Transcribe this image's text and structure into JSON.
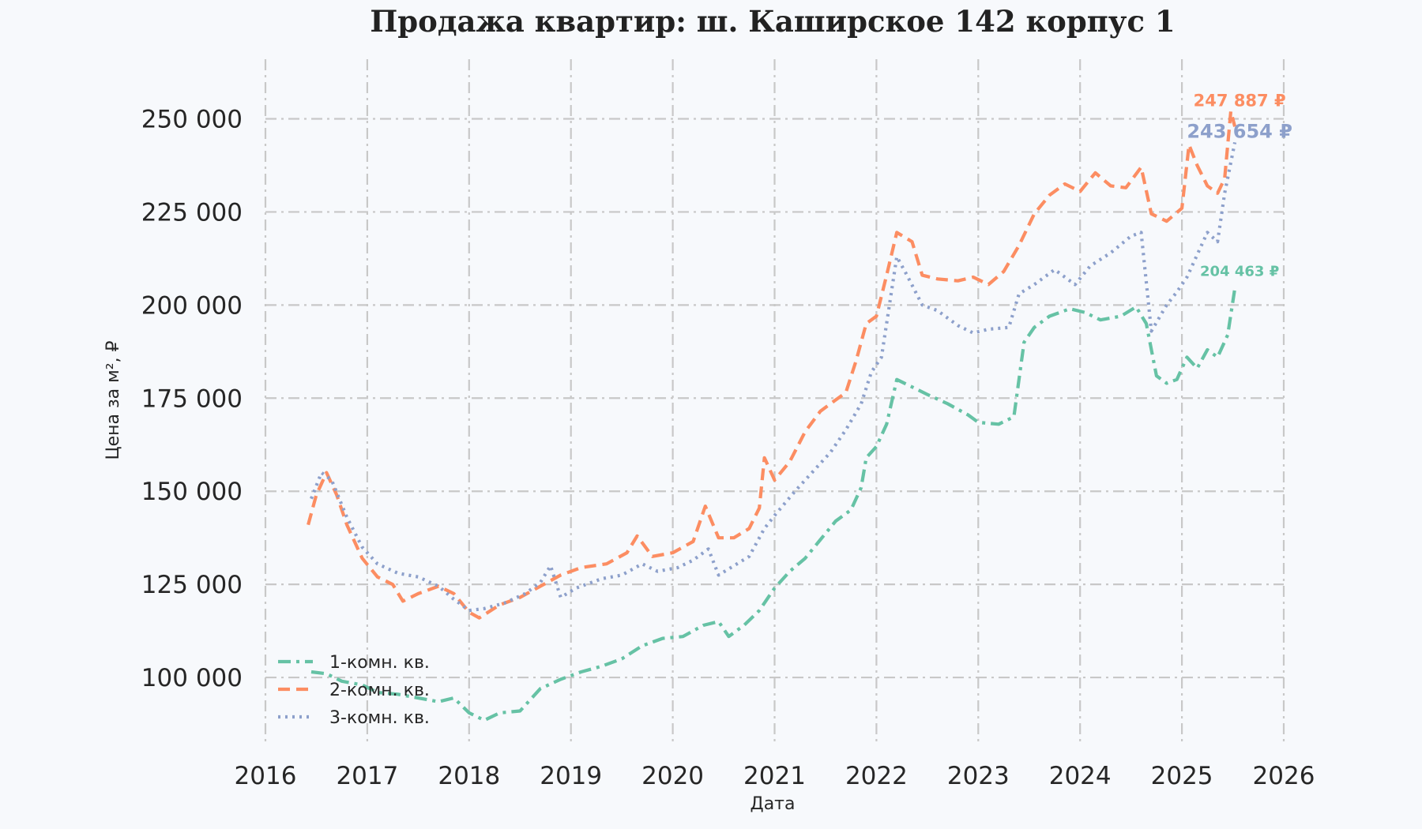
{
  "chart_data": {
    "type": "line",
    "title": "Продажа квартир: ш. Каширское 142 корпус 1",
    "xlabel": "Дата",
    "ylabel": "Цена за м², ₽",
    "xlim": [
      2016.0,
      2026.0
    ],
    "ylim": [
      82000,
      266000
    ],
    "x_ticks": [
      2016,
      2017,
      2018,
      2019,
      2020,
      2021,
      2022,
      2023,
      2024,
      2025,
      2026
    ],
    "x_tick_labels": [
      "2016",
      "2017",
      "2018",
      "2019",
      "2020",
      "2021",
      "2022",
      "2023",
      "2024",
      "2025",
      "2026"
    ],
    "y_ticks": [
      100000,
      125000,
      150000,
      175000,
      200000,
      225000,
      250000
    ],
    "y_tick_labels": [
      "100 000",
      "125 000",
      "150 000",
      "175 000",
      "200 000",
      "225 000",
      "250 000"
    ],
    "grid": true,
    "legend_position": "bottom-left",
    "series": [
      {
        "name": "1-комн. кв.",
        "color": "#66c2a5",
        "dash": "dash-dot",
        "end_label": "204 463 ₽",
        "points": [
          [
            2016.45,
            101500
          ],
          [
            2016.6,
            101000
          ],
          [
            2016.75,
            99000
          ],
          [
            2016.95,
            98000
          ],
          [
            2017.1,
            96000
          ],
          [
            2017.3,
            95500
          ],
          [
            2017.5,
            94500
          ],
          [
            2017.7,
            93500
          ],
          [
            2017.85,
            94500
          ],
          [
            2018.0,
            90500
          ],
          [
            2018.15,
            88500
          ],
          [
            2018.3,
            90500
          ],
          [
            2018.5,
            91000
          ],
          [
            2018.7,
            97000
          ],
          [
            2018.9,
            99500
          ],
          [
            2019.1,
            101500
          ],
          [
            2019.3,
            103000
          ],
          [
            2019.5,
            105000
          ],
          [
            2019.7,
            108500
          ],
          [
            2019.9,
            110500
          ],
          [
            2020.1,
            111000
          ],
          [
            2020.3,
            114000
          ],
          [
            2020.45,
            115000
          ],
          [
            2020.55,
            111000
          ],
          [
            2020.7,
            114000
          ],
          [
            2020.85,
            118000
          ],
          [
            2021.0,
            124000
          ],
          [
            2021.15,
            128500
          ],
          [
            2021.3,
            132000
          ],
          [
            2021.45,
            137000
          ],
          [
            2021.6,
            142000
          ],
          [
            2021.75,
            145000
          ],
          [
            2021.85,
            151000
          ],
          [
            2021.9,
            159000
          ],
          [
            2022.0,
            162000
          ],
          [
            2022.1,
            168000
          ],
          [
            2022.2,
            180000
          ],
          [
            2022.35,
            178000
          ],
          [
            2022.5,
            176000
          ],
          [
            2022.7,
            173500
          ],
          [
            2022.9,
            170500
          ],
          [
            2023.0,
            168500
          ],
          [
            2023.2,
            168000
          ],
          [
            2023.35,
            170000
          ],
          [
            2023.45,
            190000
          ],
          [
            2023.55,
            194000
          ],
          [
            2023.7,
            197000
          ],
          [
            2023.9,
            199000
          ],
          [
            2024.05,
            198000
          ],
          [
            2024.2,
            196000
          ],
          [
            2024.4,
            197000
          ],
          [
            2024.55,
            199500
          ],
          [
            2024.65,
            195000
          ],
          [
            2024.75,
            181000
          ],
          [
            2024.85,
            179000
          ],
          [
            2024.95,
            180000
          ],
          [
            2025.05,
            186000
          ],
          [
            2025.15,
            183000
          ],
          [
            2025.25,
            188000
          ],
          [
            2025.35,
            186000
          ],
          [
            2025.45,
            192000
          ],
          [
            2025.52,
            204463
          ]
        ]
      },
      {
        "name": "2-комн. кв.",
        "color": "#fc8d62",
        "dash": "dashed",
        "end_label": "247 887 ₽",
        "points": [
          [
            2016.42,
            141000
          ],
          [
            2016.5,
            149000
          ],
          [
            2016.6,
            155000
          ],
          [
            2016.7,
            149000
          ],
          [
            2016.8,
            141000
          ],
          [
            2016.95,
            132000
          ],
          [
            2017.1,
            127000
          ],
          [
            2017.25,
            125000
          ],
          [
            2017.35,
            120500
          ],
          [
            2017.5,
            122500
          ],
          [
            2017.7,
            124500
          ],
          [
            2017.85,
            122500
          ],
          [
            2018.0,
            117500
          ],
          [
            2018.1,
            116000
          ],
          [
            2018.3,
            119500
          ],
          [
            2018.5,
            121500
          ],
          [
            2018.7,
            124500
          ],
          [
            2018.9,
            127500
          ],
          [
            2019.1,
            129500
          ],
          [
            2019.35,
            130500
          ],
          [
            2019.55,
            133500
          ],
          [
            2019.65,
            138000
          ],
          [
            2019.8,
            132500
          ],
          [
            2020.0,
            133500
          ],
          [
            2020.2,
            136500
          ],
          [
            2020.32,
            146000
          ],
          [
            2020.45,
            137500
          ],
          [
            2020.6,
            137500
          ],
          [
            2020.75,
            140000
          ],
          [
            2020.85,
            145500
          ],
          [
            2020.9,
            159000
          ],
          [
            2021.0,
            153000
          ],
          [
            2021.15,
            158000
          ],
          [
            2021.3,
            166000
          ],
          [
            2021.45,
            171500
          ],
          [
            2021.6,
            174500
          ],
          [
            2021.7,
            176500
          ],
          [
            2021.8,
            185000
          ],
          [
            2021.9,
            195000
          ],
          [
            2022.0,
            197000
          ],
          [
            2022.1,
            208000
          ],
          [
            2022.2,
            219500
          ],
          [
            2022.35,
            217000
          ],
          [
            2022.45,
            208000
          ],
          [
            2022.6,
            207000
          ],
          [
            2022.8,
            206500
          ],
          [
            2022.95,
            207500
          ],
          [
            2023.1,
            205500
          ],
          [
            2023.25,
            209000
          ],
          [
            2023.4,
            216000
          ],
          [
            2023.55,
            224500
          ],
          [
            2023.7,
            229500
          ],
          [
            2023.85,
            232500
          ],
          [
            2024.0,
            230500
          ],
          [
            2024.15,
            235500
          ],
          [
            2024.3,
            232000
          ],
          [
            2024.45,
            231500
          ],
          [
            2024.6,
            237000
          ],
          [
            2024.7,
            224500
          ],
          [
            2024.85,
            222500
          ],
          [
            2025.0,
            226000
          ],
          [
            2025.07,
            243000
          ],
          [
            2025.15,
            237500
          ],
          [
            2025.25,
            232000
          ],
          [
            2025.35,
            230000
          ],
          [
            2025.42,
            234000
          ],
          [
            2025.48,
            252000
          ],
          [
            2025.52,
            247887
          ]
        ]
      },
      {
        "name": "3-комн. кв.",
        "color": "#8da0cb",
        "dash": "dotted",
        "end_label": "243 654 ₽",
        "points": [
          [
            2016.45,
            148000
          ],
          [
            2016.55,
            155000
          ],
          [
            2016.65,
            153000
          ],
          [
            2016.8,
            143000
          ],
          [
            2016.95,
            135000
          ],
          [
            2017.1,
            130500
          ],
          [
            2017.3,
            128000
          ],
          [
            2017.5,
            127000
          ],
          [
            2017.7,
            124500
          ],
          [
            2017.85,
            121000
          ],
          [
            2018.0,
            118000
          ],
          [
            2018.15,
            118500
          ],
          [
            2018.35,
            120000
          ],
          [
            2018.55,
            122500
          ],
          [
            2018.7,
            125500
          ],
          [
            2018.8,
            130000
          ],
          [
            2018.9,
            121500
          ],
          [
            2019.05,
            124000
          ],
          [
            2019.3,
            126500
          ],
          [
            2019.5,
            127500
          ],
          [
            2019.7,
            130500
          ],
          [
            2019.85,
            128500
          ],
          [
            2020.05,
            129500
          ],
          [
            2020.2,
            131500
          ],
          [
            2020.35,
            134500
          ],
          [
            2020.45,
            127500
          ],
          [
            2020.6,
            130000
          ],
          [
            2020.75,
            132500
          ],
          [
            2020.9,
            140000
          ],
          [
            2021.0,
            143500
          ],
          [
            2021.2,
            150000
          ],
          [
            2021.4,
            156000
          ],
          [
            2021.55,
            160500
          ],
          [
            2021.7,
            166500
          ],
          [
            2021.85,
            173500
          ],
          [
            2021.95,
            182000
          ],
          [
            2022.05,
            186000
          ],
          [
            2022.2,
            213000
          ],
          [
            2022.3,
            208000
          ],
          [
            2022.45,
            200000
          ],
          [
            2022.6,
            198500
          ],
          [
            2022.8,
            194500
          ],
          [
            2022.95,
            192500
          ],
          [
            2023.1,
            193500
          ],
          [
            2023.3,
            194000
          ],
          [
            2023.4,
            203000
          ],
          [
            2023.55,
            205500
          ],
          [
            2023.75,
            209500
          ],
          [
            2023.95,
            205500
          ],
          [
            2024.1,
            210500
          ],
          [
            2024.3,
            214000
          ],
          [
            2024.5,
            218500
          ],
          [
            2024.6,
            219500
          ],
          [
            2024.7,
            193000
          ],
          [
            2024.85,
            200000
          ],
          [
            2024.95,
            203500
          ],
          [
            2025.05,
            207500
          ],
          [
            2025.15,
            213500
          ],
          [
            2025.25,
            219500
          ],
          [
            2025.35,
            217000
          ],
          [
            2025.42,
            230000
          ],
          [
            2025.52,
            243654
          ]
        ]
      }
    ]
  }
}
